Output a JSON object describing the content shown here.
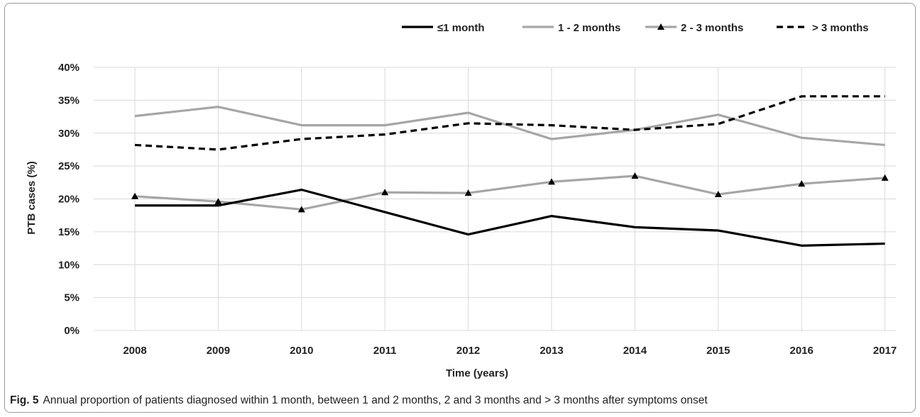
{
  "chart_data": {
    "type": "line",
    "xlabel": "Time (years)",
    "ylabel": "PTB cases  (%)",
    "categories": [
      "2008",
      "2009",
      "2010",
      "2011",
      "2012",
      "2013",
      "2014",
      "2015",
      "2016",
      "2017"
    ],
    "y_ticks": [
      "0%",
      "5%",
      "10%",
      "15%",
      "20%",
      "25%",
      "30%",
      "35%",
      "40%"
    ],
    "ylim": [
      0,
      40
    ],
    "grid": true,
    "legend_position": "top-right",
    "series": [
      {
        "name": "≤1 month",
        "values": [
          19.0,
          19.0,
          21.4,
          18.0,
          14.6,
          17.4,
          15.7,
          15.2,
          12.9,
          13.2
        ],
        "color": "#000000",
        "style": "solid",
        "marker": "none"
      },
      {
        "name": "1 - 2 months",
        "values": [
          32.6,
          34.0,
          31.2,
          31.2,
          33.1,
          29.1,
          30.5,
          32.8,
          29.3,
          28.2
        ],
        "color": "#a6a6a6",
        "style": "solid",
        "marker": "none"
      },
      {
        "name": "2 - 3 months",
        "values": [
          20.4,
          19.6,
          18.4,
          21.0,
          20.9,
          22.6,
          23.5,
          20.7,
          22.3,
          23.2
        ],
        "color": "#a6a6a6",
        "style": "solid",
        "marker": "triangle"
      },
      {
        "name": "> 3 months",
        "values": [
          28.2,
          27.5,
          29.1,
          29.8,
          31.5,
          31.2,
          30.5,
          31.4,
          35.6,
          35.6
        ],
        "color": "#000000",
        "style": "dashed",
        "marker": "none"
      }
    ]
  },
  "caption": {
    "label": "Fig. 5",
    "text": "Annual proportion of patients diagnosed within 1 month, between 1 and 2 months, 2 and 3 months and > 3 months after symptoms onset"
  }
}
